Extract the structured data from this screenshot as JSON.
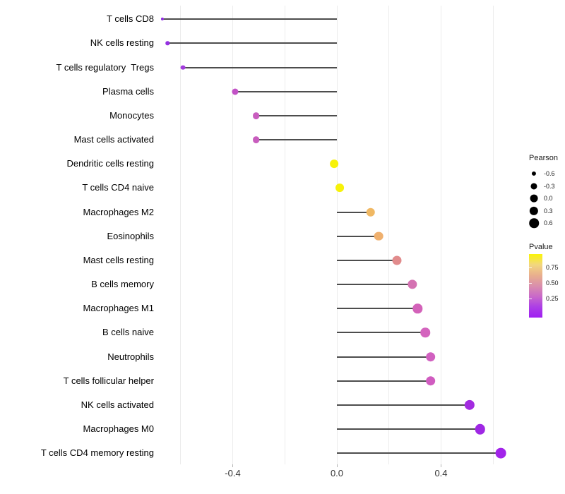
{
  "figure": {
    "background": "#ffffff"
  },
  "chart_data": {
    "type": "lollipop",
    "orientation": "horizontal",
    "title": "",
    "xlabel": "",
    "ylabel": "",
    "xlim": [
      -0.7,
      0.71
    ],
    "baseline": 0.0,
    "grid": "vertical-only",
    "x_ticks": {
      "labels": [
        "-0.4",
        "0.0",
        "0.4"
      ],
      "values": [
        -0.4,
        0.0,
        0.4
      ]
    },
    "x_gridlines": [
      -0.6,
      -0.4,
      -0.2,
      0.0,
      0.2,
      0.4,
      0.6
    ],
    "categories": [
      "T cells CD8",
      "NK cells resting",
      "T cells regulatory  Tregs",
      "Plasma cells",
      "Monocytes",
      "Mast cells activated",
      "Dendritic cells resting",
      "T cells CD4 naive",
      "Macrophages M2",
      "Eosinophils",
      "Mast cells resting",
      "B cells memory",
      "Macrophages M1",
      "B cells naive",
      "Neutrophils",
      "T cells follicular helper",
      "NK cells activated",
      "Macrophages M0",
      "T cells CD4 memory resting"
    ],
    "points": [
      {
        "label": "T cells CD8",
        "pearson": -0.67,
        "color": "#8F2BE2"
      },
      {
        "label": "NK cells resting",
        "pearson": -0.65,
        "color": "#9530E2"
      },
      {
        "label": "T cells regulatory  Tregs",
        "pearson": -0.59,
        "color": "#A23BDC"
      },
      {
        "label": "Plasma cells",
        "pearson": -0.39,
        "color": "#C252C6"
      },
      {
        "label": "Monocytes",
        "pearson": -0.31,
        "color": "#C85DBE"
      },
      {
        "label": "Mast cells activated",
        "pearson": -0.31,
        "color": "#C85DBE"
      },
      {
        "label": "Dendritic cells resting",
        "pearson": -0.01,
        "color": "#F7F209"
      },
      {
        "label": "T cells CD4 naive",
        "pearson": 0.01,
        "color": "#F7F209"
      },
      {
        "label": "Macrophages M2",
        "pearson": 0.13,
        "color": "#F0B863"
      },
      {
        "label": "Eosinophils",
        "pearson": 0.16,
        "color": "#EFB06E"
      },
      {
        "label": "Mast cells resting",
        "pearson": 0.23,
        "color": "#E18B8C"
      },
      {
        "label": "B cells memory",
        "pearson": 0.29,
        "color": "#D472B2"
      },
      {
        "label": "Macrophages M1",
        "pearson": 0.31,
        "color": "#D362B9"
      },
      {
        "label": "B cells naive",
        "pearson": 0.34,
        "color": "#D464BE"
      },
      {
        "label": "Neutrophils",
        "pearson": 0.36,
        "color": "#D160C0"
      },
      {
        "label": "T cells follicular helper",
        "pearson": 0.36,
        "color": "#D05CC0"
      },
      {
        "label": "NK cells activated",
        "pearson": 0.51,
        "color": "#A32BE0"
      },
      {
        "label": "Macrophages M0",
        "pearson": 0.55,
        "color": "#9F28E4"
      },
      {
        "label": "T cells CD4 memory resting",
        "pearson": 0.63,
        "color": "#A224EA"
      }
    ],
    "stem_color": "#4d4d4d",
    "gridline_color": "#ececec"
  },
  "legend_pearson": {
    "title": "Pearson",
    "dot_color": "#000000",
    "entries": [
      {
        "label": "-0.6",
        "value": -0.6
      },
      {
        "label": "-0.3",
        "value": -0.3
      },
      {
        "label": "0.0",
        "value": 0.0
      },
      {
        "label": "0.3",
        "value": 0.3
      },
      {
        "label": "0.6",
        "value": 0.6
      }
    ]
  },
  "legend_pvalue": {
    "title": "Pvalue",
    "tick_labels": [
      "0.75",
      "0.50",
      "0.25"
    ],
    "gradient_top_to_bottom": [
      "#FAF407",
      "#F2D77E",
      "#E9AF8D",
      "#DA8FAC",
      "#C969C9",
      "#AC3EE6",
      "#A01EF2"
    ]
  }
}
